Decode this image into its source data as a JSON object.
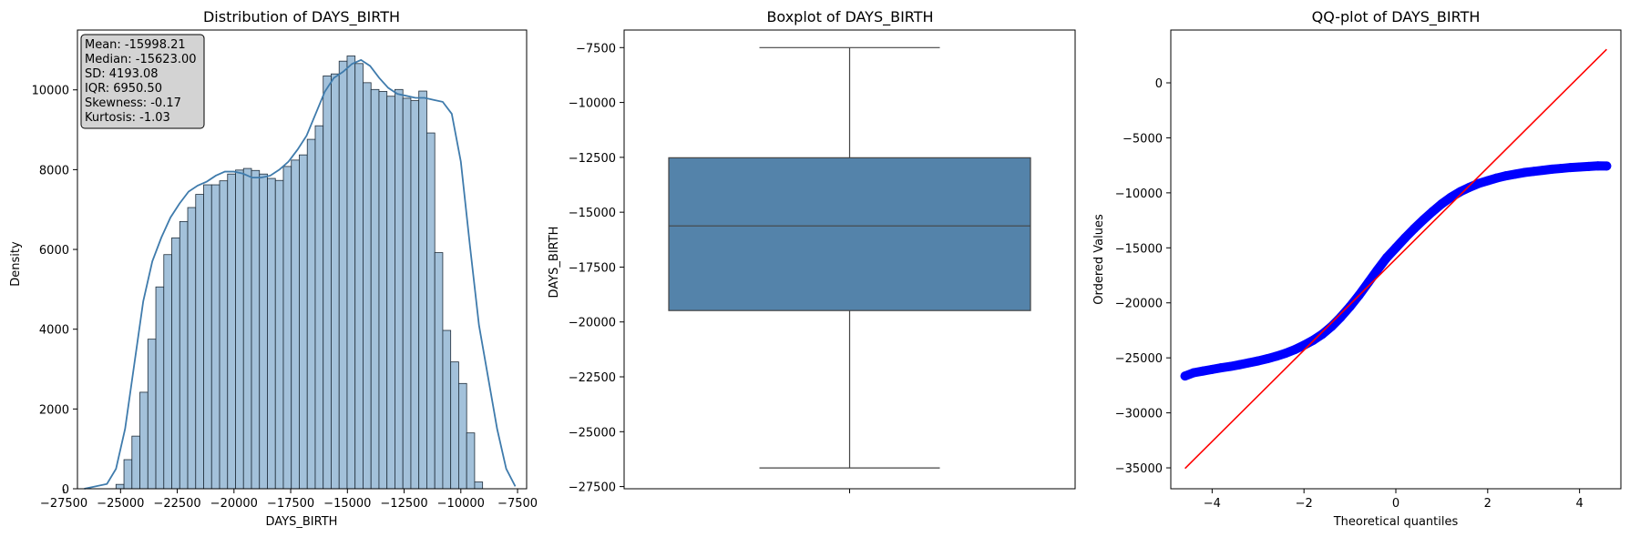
{
  "chart_data": [
    {
      "type": "bar",
      "title": "Distribution of DAYS_BIRTH",
      "xlabel": "DAYS_BIRTH",
      "ylabel": "Density",
      "xlim": [
        -26900,
        -7100
      ],
      "ylim": [
        0,
        11500
      ],
      "xticks": [
        -27500,
        -25000,
        -22500,
        -20000,
        -17500,
        -15000,
        -12500,
        -10000,
        -7500
      ],
      "yticks": [
        0,
        2000,
        4000,
        6000,
        8000,
        10000
      ],
      "bin_start": -25201,
      "bin_width": 351.3,
      "values": [
        110,
        730,
        1320,
        2420,
        3750,
        5060,
        5870,
        6290,
        6700,
        7050,
        7380,
        7620,
        7620,
        7720,
        7890,
        7990,
        8030,
        7980,
        7890,
        7780,
        7730,
        8080,
        8240,
        8370,
        8760,
        9100,
        10350,
        10400,
        10720,
        10850,
        10660,
        10180,
        10010,
        9960,
        9840,
        10010,
        9790,
        9730,
        9970,
        8920,
        5920,
        3970,
        3180,
        2640,
        1400,
        170
      ],
      "kde_x": [
        -26600,
        -25600,
        -25200,
        -24800,
        -24400,
        -24000,
        -23600,
        -23200,
        -22800,
        -22400,
        -22000,
        -21600,
        -21200,
        -20800,
        -20400,
        -20000,
        -19600,
        -19200,
        -18800,
        -18400,
        -18000,
        -17600,
        -17200,
        -16800,
        -16400,
        -16000,
        -15600,
        -15200,
        -14800,
        -14400,
        -14000,
        -13600,
        -13200,
        -12800,
        -12400,
        -12000,
        -11600,
        -11200,
        -10800,
        -10400,
        -10000,
        -9600,
        -9200,
        -8800,
        -8400,
        -8000,
        -7600
      ],
      "kde_y": [
        0,
        120,
        500,
        1500,
        3100,
        4700,
        5700,
        6300,
        6800,
        7150,
        7450,
        7600,
        7700,
        7850,
        7950,
        7950,
        7900,
        7800,
        7800,
        7850,
        8000,
        8200,
        8500,
        8850,
        9400,
        9950,
        10300,
        10450,
        10650,
        10750,
        10600,
        10300,
        10050,
        9900,
        9850,
        9800,
        9800,
        9750,
        9700,
        9400,
        8200,
        6100,
        4100,
        2800,
        1500,
        500,
        60
      ],
      "stats": [
        "Mean: -15998.21",
        "Median: -15623.00",
        "SD: 4193.08",
        "IQR: 6950.50",
        "Skewness: -0.17",
        "Kurtosis: -1.03"
      ],
      "colors": {
        "bar": "#a3c1da",
        "bar_edge": "#1f2d3a",
        "kde": "#3f7bac",
        "stats_box": "#d3d3d3"
      }
    },
    {
      "type": "box",
      "title": "Boxplot of DAYS_BIRTH",
      "xlabel": "",
      "ylabel": "DAYS_BIRTH",
      "ylim": [
        -27600,
        -6700
      ],
      "yticks": [
        -27500,
        -25000,
        -22500,
        -20000,
        -17500,
        -15000,
        -12500,
        -10000,
        -7500
      ],
      "min": -26650,
      "q1": -19480,
      "median": -15623,
      "q3": -12520,
      "max": -7500,
      "colors": {
        "box": "#5483aa",
        "line": "#444444"
      }
    },
    {
      "type": "scatter",
      "title": "QQ-plot of DAYS_BIRTH",
      "xlabel": "Theoretical quantiles",
      "ylabel": "Ordered Values",
      "xlim": [
        -4.9,
        4.9
      ],
      "ylim": [
        -36900,
        4800
      ],
      "xticks": [
        -4,
        -2,
        0,
        2,
        4
      ],
      "yticks": [
        -35000,
        -30000,
        -25000,
        -20000,
        -15000,
        -10000,
        -5000,
        0
      ],
      "points": [
        [
          -4.59,
          -26650
        ],
        [
          -4.4,
          -26350
        ],
        [
          -4.2,
          -26200
        ],
        [
          -4.0,
          -26050
        ],
        [
          -3.8,
          -25900
        ],
        [
          -3.6,
          -25780
        ],
        [
          -3.4,
          -25620
        ],
        [
          -3.2,
          -25450
        ],
        [
          -3.0,
          -25280
        ],
        [
          -2.8,
          -25080
        ],
        [
          -2.6,
          -24850
        ],
        [
          -2.4,
          -24580
        ],
        [
          -2.2,
          -24250
        ],
        [
          -2.0,
          -23850
        ],
        [
          -1.8,
          -23400
        ],
        [
          -1.6,
          -22850
        ],
        [
          -1.4,
          -22150
        ],
        [
          -1.2,
          -21300
        ],
        [
          -1.0,
          -20350
        ],
        [
          -0.8,
          -19300
        ],
        [
          -0.6,
          -18150
        ],
        [
          -0.4,
          -17000
        ],
        [
          -0.2,
          -15900
        ],
        [
          0.0,
          -15000
        ],
        [
          0.2,
          -14100
        ],
        [
          0.4,
          -13250
        ],
        [
          0.6,
          -12450
        ],
        [
          0.8,
          -11700
        ],
        [
          1.0,
          -11000
        ],
        [
          1.2,
          -10400
        ],
        [
          1.4,
          -9900
        ],
        [
          1.6,
          -9500
        ],
        [
          1.8,
          -9150
        ],
        [
          2.0,
          -8900
        ],
        [
          2.2,
          -8650
        ],
        [
          2.4,
          -8450
        ],
        [
          2.6,
          -8300
        ],
        [
          2.8,
          -8150
        ],
        [
          3.0,
          -8050
        ],
        [
          3.2,
          -7950
        ],
        [
          3.4,
          -7850
        ],
        [
          3.6,
          -7780
        ],
        [
          3.8,
          -7700
        ],
        [
          4.0,
          -7650
        ],
        [
          4.2,
          -7600
        ],
        [
          4.4,
          -7550
        ],
        [
          4.59,
          -7560
        ]
      ],
      "line": [
        [
          -4.59,
          -35050
        ],
        [
          4.59,
          3050
        ]
      ],
      "colors": {
        "points": "#0000ff",
        "line": "#ff0000"
      }
    }
  ]
}
